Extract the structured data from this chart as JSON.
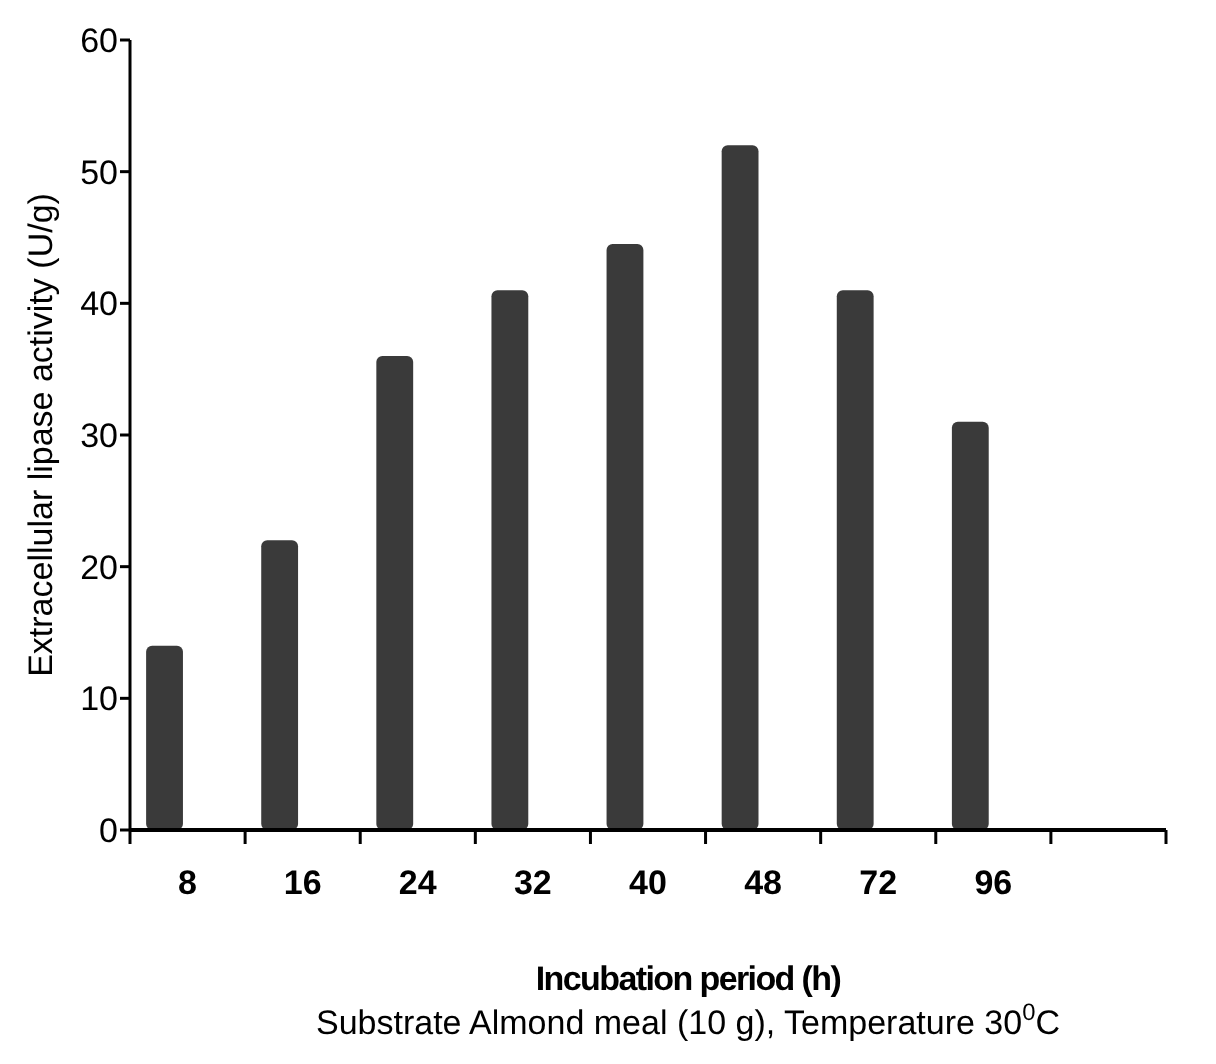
{
  "chart_data": {
    "type": "bar",
    "xlabel": "Incubation period (h)",
    "ylabel": "Extracellular lipase activity (U/g)",
    "annotations": [
      "Substrate Almond meal (10 g), Temperature 30$^{0}$C"
    ],
    "categories": [
      "8",
      "16",
      "24",
      "32",
      "40",
      "48",
      "72",
      "96",
      null
    ],
    "values": [
      14,
      22,
      36,
      41,
      44.5,
      52,
      41,
      31,
      null
    ],
    "color": "#3a3a3a",
    "ylim": [
      0,
      60
    ],
    "yticks": [
      0,
      10,
      20,
      30,
      40,
      50,
      60
    ],
    "grid": false
  }
}
